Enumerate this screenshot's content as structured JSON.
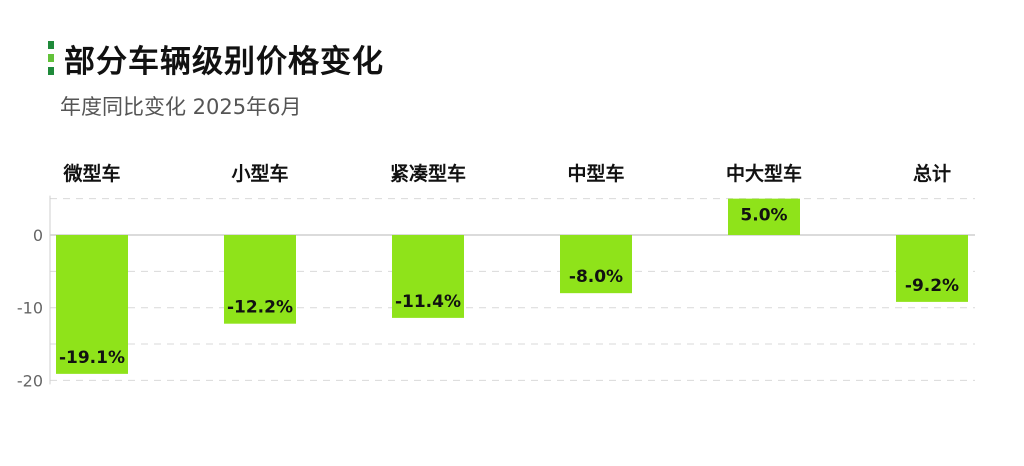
{
  "header": {
    "title": "部分车辆级别价格变化",
    "subtitle": "年度同比变化 2025年6月"
  },
  "colors": {
    "bar": "#8fe31a",
    "marker_top": "#1f8a3a",
    "marker_mid": "#62c23a",
    "marker_bottom": "#1f8a3a",
    "grid": "#d9d9d9",
    "zero_line": "#cfcfcf",
    "axis_text": "#666666",
    "label_text": "#111111"
  },
  "chart_data": {
    "type": "bar",
    "categories": [
      "微型车",
      "小型车",
      "紧凑型车",
      "中型车",
      "中大型车",
      "总计"
    ],
    "values": [
      -19.1,
      -12.2,
      -11.4,
      -8.0,
      5.0,
      -9.2
    ],
    "data_labels": [
      "-19.1%",
      "-12.2%",
      "-11.4%",
      "-8.0%",
      "5.0%",
      "-9.2%"
    ],
    "title": "部分车辆级别价格变化",
    "subtitle": "年度同比变化 2025年6月",
    "xlabel": "",
    "ylabel": "",
    "ylim": [
      -20,
      5
    ],
    "yticks": [
      0,
      -10,
      -20
    ],
    "ytick_labels": [
      "0",
      "-10",
      "-20"
    ],
    "grid": true,
    "category_labels_position": "top",
    "legend": "none"
  }
}
